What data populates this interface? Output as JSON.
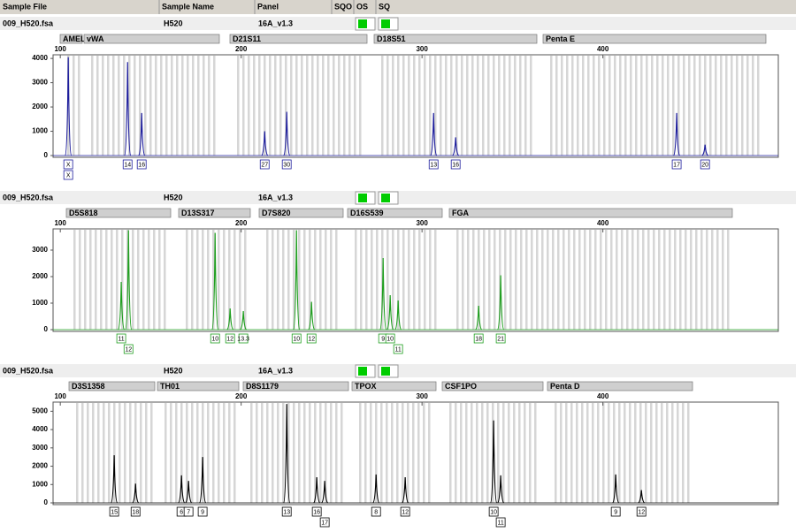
{
  "columns": [
    "Sample File",
    "Sample Name",
    "Panel",
    "SQO",
    "OS",
    "SQ"
  ],
  "chart_data": [
    {
      "type": "line",
      "sample_file": "009_H520.fsa",
      "sample_name": "H520",
      "panel": "16A_v1.3",
      "markers": [
        "AMEL",
        "vWA",
        "D21S11",
        "D18S51",
        "Penta E"
      ],
      "color": "#1c1c9c",
      "xlim": [
        96,
        497
      ],
      "xticks": [
        100,
        200,
        300,
        400
      ],
      "ylim": [
        0,
        4150
      ],
      "yticks": [
        0,
        1000,
        2000,
        3000,
        4000
      ],
      "x": [
        104.4,
        137.2,
        145.0,
        213.0,
        225.2,
        306.4,
        318.6,
        440.8,
        456.5
      ],
      "values": [
        4050,
        3850,
        1750,
        1000,
        1800,
        1750,
        750,
        1750,
        450
      ],
      "allele_labels": [
        [
          "X",
          "X"
        ],
        [
          "14"
        ],
        [
          "16"
        ],
        [
          "27"
        ],
        [
          "30"
        ],
        [
          "13"
        ],
        [
          "16"
        ],
        [
          "17"
        ],
        [
          "20"
        ]
      ]
    },
    {
      "type": "line",
      "sample_file": "009_H520.fsa",
      "sample_name": "H520",
      "panel": "16A_v1.3",
      "markers": [
        "D5S818",
        "D13S317",
        "D7S820",
        "D16S539",
        "FGA"
      ],
      "color": "#1e9e1e",
      "xlim": [
        96,
        497
      ],
      "xticks": [
        100,
        200,
        300,
        400
      ],
      "ylim": [
        0,
        3800
      ],
      "yticks": [
        0,
        1000,
        2000,
        3000
      ],
      "x": [
        133.7,
        137.7,
        185.6,
        193.9,
        201.2,
        230.6,
        238.9,
        278.5,
        282.4,
        286.8,
        331.3,
        343.5
      ],
      "values": [
        1800,
        3750,
        3650,
        800,
        700,
        3750,
        1050,
        2700,
        1300,
        1100,
        900,
        2050
      ],
      "allele_labels": [
        [
          "11"
        ],
        [
          "12"
        ],
        [
          "10"
        ],
        [
          "12"
        ],
        [
          "13.3"
        ],
        [
          "10"
        ],
        [
          "12"
        ],
        [
          "9"
        ],
        [
          "10"
        ],
        [
          "11"
        ],
        [
          "18"
        ],
        [
          "21"
        ]
      ]
    },
    {
      "type": "line",
      "sample_file": "009_H520.fsa",
      "sample_name": "H520",
      "panel": "16A_v1.3",
      "markers": [
        "D3S1358",
        "TH01",
        "D8S1179",
        "TPOX",
        "CSF1PO",
        "Penta D"
      ],
      "color": "#000000",
      "xlim": [
        96,
        497
      ],
      "xticks": [
        100,
        200,
        300,
        400
      ],
      "ylim": [
        0,
        5500
      ],
      "yticks": [
        0,
        1000,
        2000,
        3000,
        4000,
        5000
      ],
      "x": [
        129.8,
        141.6,
        167.0,
        170.9,
        178.7,
        225.2,
        241.8,
        246.2,
        274.6,
        290.7,
        339.6,
        343.5,
        407.1,
        421.3
      ],
      "values": [
        2600,
        1050,
        1500,
        1200,
        2500,
        5400,
        1400,
        1200,
        1550,
        1400,
        4500,
        1500,
        1550,
        700
      ],
      "allele_labels": [
        [
          "15"
        ],
        [
          "18"
        ],
        [
          "6"
        ],
        [
          "7"
        ],
        [
          "9"
        ],
        [
          "13"
        ],
        [
          "16"
        ],
        [
          "17"
        ],
        [
          "8"
        ],
        [
          "12"
        ],
        [
          "10"
        ],
        [
          "11"
        ],
        [
          "9"
        ],
        [
          "12"
        ]
      ]
    }
  ]
}
